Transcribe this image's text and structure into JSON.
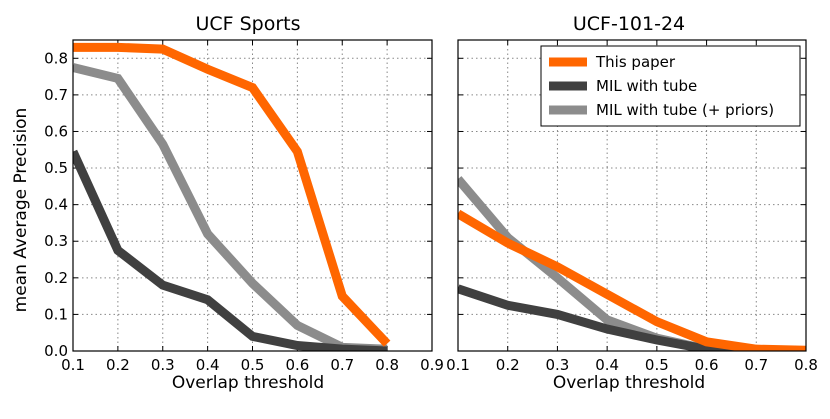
{
  "chart_data": [
    {
      "type": "line",
      "title": "UCF Sports",
      "xlabel": "Overlap threshold",
      "ylabel": "mean Average Precision",
      "xlim": [
        0.1,
        0.9
      ],
      "ylim": [
        0.0,
        0.85
      ],
      "xticks": [
        "0.1",
        "0.2",
        "0.3",
        "0.4",
        "0.5",
        "0.6",
        "0.7",
        "0.8",
        "0.9"
      ],
      "yticks": [
        "0.0",
        "0.1",
        "0.2",
        "0.3",
        "0.4",
        "0.5",
        "0.6",
        "0.7",
        "0.8"
      ],
      "grid": true,
      "series": [
        {
          "name": "This paper",
          "color": "#ff6600",
          "x": [
            0.1,
            0.2,
            0.3,
            0.4,
            0.5,
            0.6,
            0.7,
            0.8
          ],
          "values": [
            0.83,
            0.83,
            0.825,
            0.77,
            0.72,
            0.545,
            0.15,
            0.02
          ]
        },
        {
          "name": "MIL with tube",
          "color": "#404040",
          "x": [
            0.1,
            0.2,
            0.3,
            0.4,
            0.5,
            0.6,
            0.7,
            0.8
          ],
          "values": [
            0.545,
            0.275,
            0.18,
            0.14,
            0.04,
            0.015,
            0.005,
            0.0
          ]
        },
        {
          "name": "MIL with tube (+ priors)",
          "color": "#8c8c8c",
          "x": [
            0.1,
            0.2,
            0.3,
            0.4,
            0.5,
            0.6,
            0.7,
            0.8
          ],
          "values": [
            0.775,
            0.745,
            0.565,
            0.32,
            0.185,
            0.07,
            0.01,
            0.005
          ]
        }
      ]
    },
    {
      "type": "line",
      "title": "UCF-101-24",
      "xlabel": "Overlap threshold",
      "ylabel": "",
      "xlim": [
        0.1,
        0.8
      ],
      "ylim": [
        0.0,
        0.85
      ],
      "xticks": [
        "0.1",
        "0.2",
        "0.3",
        "0.4",
        "0.5",
        "0.6",
        "0.7",
        "0.8"
      ],
      "grid": true,
      "legend": "top-right",
      "series": [
        {
          "name": "This paper",
          "color": "#ff6600",
          "x": [
            0.1,
            0.2,
            0.3,
            0.4,
            0.5,
            0.6,
            0.7,
            0.8
          ],
          "values": [
            0.375,
            0.295,
            0.23,
            0.155,
            0.08,
            0.025,
            0.005,
            0.002
          ]
        },
        {
          "name": "MIL with tube",
          "color": "#404040",
          "x": [
            0.1,
            0.2,
            0.3,
            0.4,
            0.5,
            0.6,
            0.7,
            0.8
          ],
          "values": [
            0.17,
            0.125,
            0.1,
            0.06,
            0.03,
            0.005,
            0.0,
            0.0
          ]
        },
        {
          "name": "MIL with tube (+ priors)",
          "color": "#8c8c8c",
          "x": [
            0.1,
            0.2,
            0.3,
            0.4,
            0.5,
            0.6,
            0.7,
            0.8
          ],
          "values": [
            0.47,
            0.31,
            0.2,
            0.085,
            0.035,
            0.005,
            0.0,
            0.0
          ]
        }
      ]
    }
  ]
}
